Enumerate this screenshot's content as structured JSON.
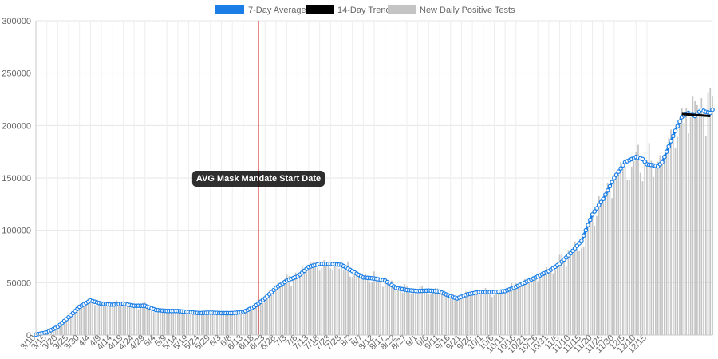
{
  "chart_data": {
    "type": "bar",
    "title": "",
    "xlabel": "",
    "ylabel": "",
    "ylim": [
      0,
      300000
    ],
    "yticks": [
      0,
      50000,
      100000,
      150000,
      200000,
      250000,
      300000
    ],
    "grid": true,
    "legend": "top-center",
    "start_date": "2020-03-10",
    "x_tick_labels": [
      "3/10",
      "3/15",
      "3/20",
      "3/25",
      "3/30",
      "4/4",
      "4/9",
      "4/14",
      "4/19",
      "4/24",
      "4/29",
      "5/4",
      "5/9",
      "5/14",
      "5/19",
      "5/24",
      "5/29",
      "6/3",
      "6/8",
      "6/13",
      "6/18",
      "6/23",
      "6/28",
      "7/3",
      "7/8",
      "7/13",
      "7/18",
      "7/23",
      "7/28",
      "8/2",
      "8/7",
      "8/12",
      "8/17",
      "8/22",
      "8/27",
      "9/1",
      "9/6",
      "9/11",
      "9/16",
      "9/21",
      "9/26",
      "10/1",
      "10/6",
      "10/11",
      "10/16",
      "10/21",
      "10/26",
      "10/31",
      "11/5",
      "11/10",
      "11/15",
      "11/20",
      "11/25",
      "11/30",
      "12/5",
      "12/10",
      "12/15"
    ],
    "legend_items": [
      {
        "label": "7-Day Average",
        "color": "#1a7ee6"
      },
      {
        "label": "14-Day Trend",
        "color": "#000000"
      },
      {
        "label": "New Daily Positive Tests",
        "color": "#c4c4c4"
      }
    ],
    "annotation": {
      "label": "AVG Mask Mandate Start Date",
      "date": "6/20",
      "line_color": "#d11a1a"
    },
    "series": [
      {
        "name": "7-Day Average",
        "keypoints": [
          [
            0,
            500
          ],
          [
            5,
            2500
          ],
          [
            10,
            8000
          ],
          [
            15,
            17000
          ],
          [
            20,
            27000
          ],
          [
            25,
            33000
          ],
          [
            30,
            30000
          ],
          [
            35,
            29000
          ],
          [
            40,
            30000
          ],
          [
            45,
            28000
          ],
          [
            50,
            28000
          ],
          [
            55,
            24000
          ],
          [
            60,
            23000
          ],
          [
            65,
            23000
          ],
          [
            70,
            22000
          ],
          [
            75,
            21000
          ],
          [
            80,
            21500
          ],
          [
            85,
            21000
          ],
          [
            90,
            21000
          ],
          [
            95,
            22000
          ],
          [
            100,
            27000
          ],
          [
            105,
            35000
          ],
          [
            110,
            45000
          ],
          [
            115,
            52000
          ],
          [
            120,
            56000
          ],
          [
            125,
            65000
          ],
          [
            130,
            68000
          ],
          [
            135,
            68000
          ],
          [
            140,
            67000
          ],
          [
            145,
            61000
          ],
          [
            150,
            55000
          ],
          [
            155,
            54000
          ],
          [
            160,
            52000
          ],
          [
            165,
            45000
          ],
          [
            170,
            43000
          ],
          [
            175,
            42000
          ],
          [
            180,
            42500
          ],
          [
            185,
            41500
          ],
          [
            190,
            37000
          ],
          [
            193,
            35000
          ],
          [
            198,
            39000
          ],
          [
            203,
            41000
          ],
          [
            210,
            41000
          ],
          [
            215,
            42000
          ],
          [
            220,
            46000
          ],
          [
            225,
            51000
          ],
          [
            230,
            56000
          ],
          [
            235,
            61000
          ],
          [
            240,
            68000
          ],
          [
            245,
            78000
          ],
          [
            250,
            90000
          ],
          [
            255,
            115000
          ],
          [
            260,
            130000
          ],
          [
            265,
            150000
          ],
          [
            270,
            165000
          ],
          [
            275,
            170000
          ],
          [
            278,
            168000
          ],
          [
            280,
            163000
          ],
          [
            283,
            162000
          ],
          [
            285,
            161000
          ],
          [
            287,
            165000
          ],
          [
            290,
            180000
          ],
          [
            293,
            195000
          ],
          [
            296,
            208000
          ],
          [
            299,
            212000
          ],
          [
            302,
            209000
          ],
          [
            305,
            215000
          ],
          [
            307,
            213000
          ],
          [
            309,
            212000
          ],
          [
            310,
            215000
          ]
        ]
      },
      {
        "name": "14-Day Trend",
        "points": [
          [
            296,
            211000
          ],
          [
            309,
            209000
          ]
        ]
      },
      {
        "name": "New Daily Positive Tests",
        "daily_noise": 0.1
      }
    ]
  }
}
